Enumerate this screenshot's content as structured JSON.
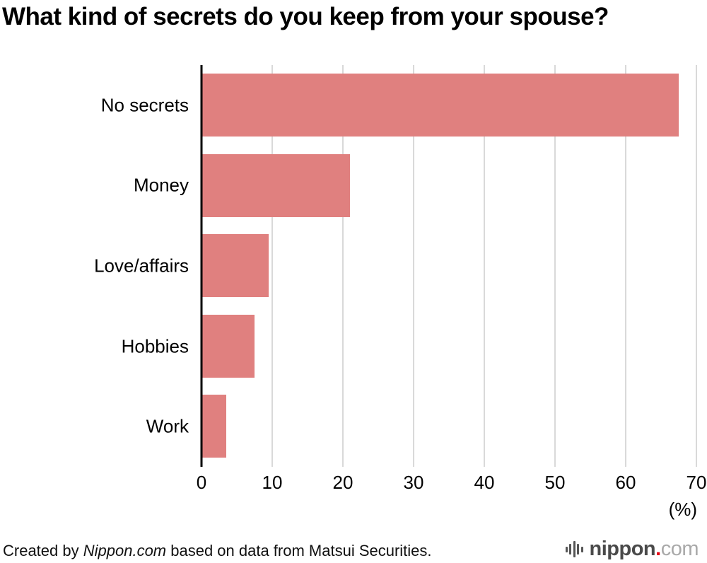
{
  "chart_data": {
    "type": "bar",
    "orientation": "horizontal",
    "title": "What kind of secrets do you keep from your spouse?",
    "categories": [
      "No secrets",
      "Money",
      "Love/affairs",
      "Hobbies",
      "Work"
    ],
    "values": [
      67.5,
      21,
      9.5,
      7.5,
      3.5
    ],
    "xlabel": "(%)",
    "ylabel": "",
    "xlim": [
      0,
      70
    ],
    "ticks": [
      0,
      10,
      20,
      30,
      40,
      50,
      60,
      70
    ],
    "grid": true,
    "legend_position": "none",
    "bar_color": "#e0807f",
    "gridline_color": "#d9d9d9",
    "axis_color": "#000000"
  },
  "footer": {
    "credit_prefix": "Created by ",
    "credit_site": "Nippon.com",
    "credit_suffix": " based on data from  Matsui Securities.",
    "logo": {
      "icon": "waveform-icon",
      "name": "nippon",
      "dot": ".",
      "tld": "com",
      "name_color": "#4a4a4a",
      "dot_color": "#e60012",
      "tld_color": "#a9a9a9"
    }
  }
}
